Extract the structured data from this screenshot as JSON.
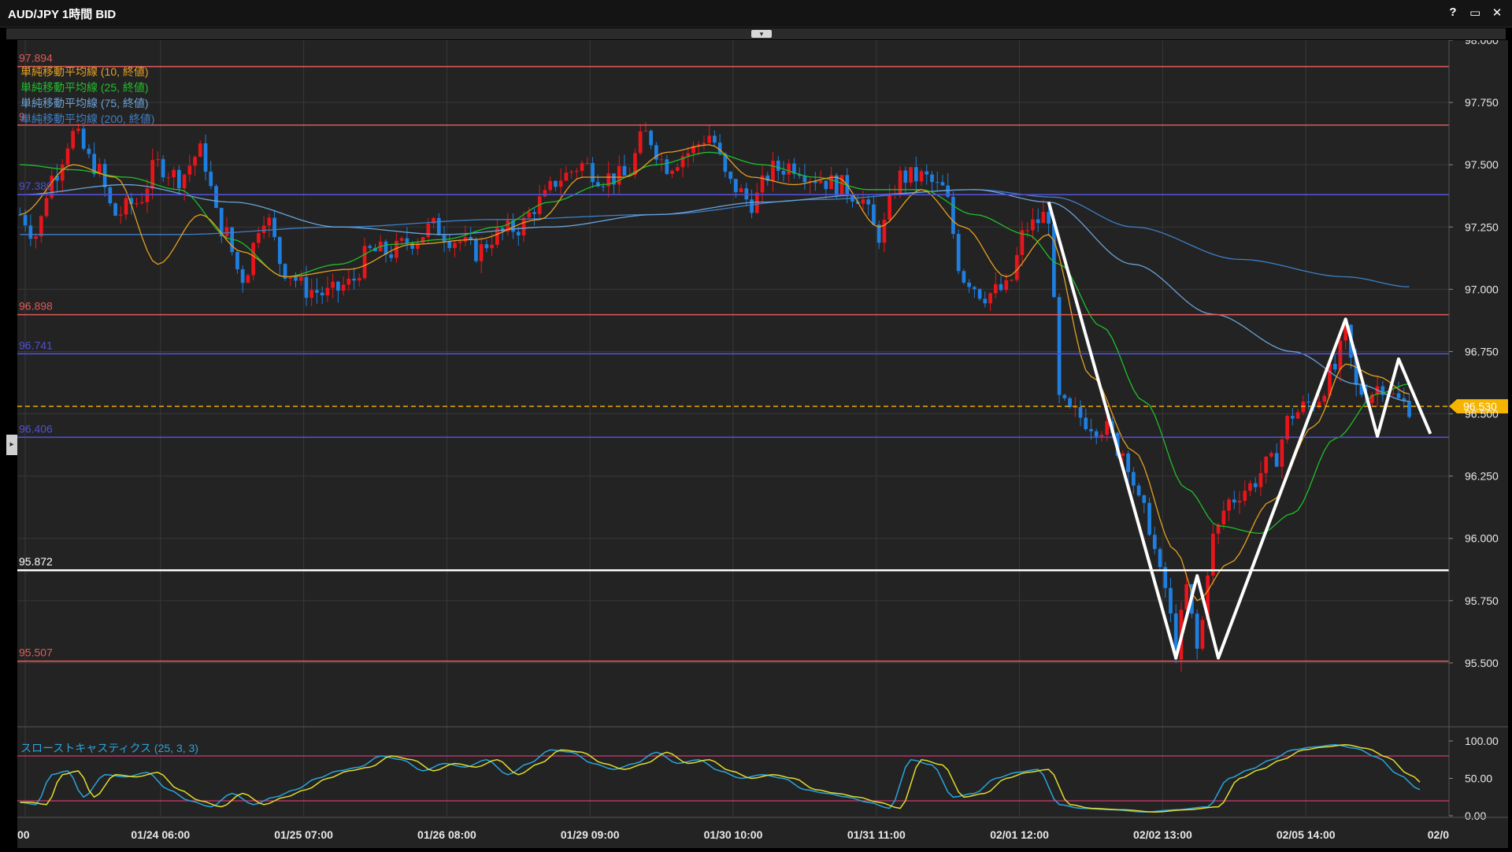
{
  "window": {
    "title": "AUD/JPY 1時間 BID",
    "buttons": [
      {
        "name": "help-button",
        "label": "?"
      },
      {
        "name": "maximize-button",
        "label": "▭"
      },
      {
        "name": "close-button",
        "label": "✕"
      }
    ]
  },
  "controls": {
    "collapse_icon": "▾",
    "side_handle_icon": "▸"
  },
  "colors": {
    "background": "#232323",
    "grid": "#383838",
    "up_candle": "#e8151b",
    "down_candle": "#1e7fe0",
    "sma10": "#e5a021",
    "sma25": "#1fbf2a",
    "sma75": "#6aa2d8",
    "sma200": "#3d7fc6",
    "resistance_line": "#e05a5a",
    "support_line_blue": "#5050d0",
    "neckline": "#ffffff",
    "current_price": "#f5b400",
    "stoch_k": "#2aa4dc",
    "stoch_d": "#e0dc2e",
    "stoch_levels": "#d03c6e"
  },
  "chart_data": [
    {
      "type": "candlestick",
      "instrument": "AUD/JPY",
      "timeframe": "1時間",
      "price_type": "BID",
      "y_axis": {
        "min": 95.25,
        "max": 98.0,
        "ticks": [
          "98.000",
          "97.750",
          "97.500",
          "97.250",
          "97.000",
          "96.750",
          "96.500",
          "96.250",
          "96.000",
          "95.750",
          "95.500"
        ]
      },
      "x_axis": {
        "ticks": [
          "00",
          "01/24 06:00",
          "01/25 07:00",
          "01/26 08:00",
          "01/29 09:00",
          "01/30 10:00",
          "01/31 11:00",
          "02/01 12:00",
          "02/02 13:00",
          "02/05 14:00",
          "02/0"
        ]
      },
      "current_price": {
        "value": 96.53,
        "label": "96.530"
      },
      "legend": [
        {
          "label": "単純移動平均線 (10, 終値)",
          "color_key": "sma10"
        },
        {
          "label": "単純移動平均線 (25, 終値)",
          "color_key": "sma25"
        },
        {
          "label": "単純移動平均線 (75, 終値)",
          "color_key": "sma75"
        },
        {
          "label": "単純移動平均線 (200, 終値)",
          "color_key": "sma200"
        }
      ],
      "horizontal_lines": [
        {
          "value": 97.894,
          "label": "97.894",
          "color_key": "resistance_line"
        },
        {
          "value": 97.659,
          "label": "9",
          "color_key": "resistance_line"
        },
        {
          "value": 97.38,
          "label": "97.380",
          "color_key": "support_line_blue"
        },
        {
          "value": 96.898,
          "label": "96.898",
          "color_key": "resistance_line"
        },
        {
          "value": 96.741,
          "label": "96.741",
          "color_key": "support_line_blue"
        },
        {
          "value": 96.406,
          "label": "96.406",
          "color_key": "support_line_blue"
        },
        {
          "value": 95.872,
          "label": "95.872",
          "color_key": "neckline"
        },
        {
          "value": 95.507,
          "label": "95.507",
          "color_key": "resistance_line"
        }
      ],
      "price_anchors": [
        [
          0,
          97.3
        ],
        [
          3,
          97.22
        ],
        [
          6,
          97.45
        ],
        [
          10,
          97.62
        ],
        [
          14,
          97.5
        ],
        [
          18,
          97.3
        ],
        [
          22,
          97.35
        ],
        [
          26,
          97.5
        ],
        [
          30,
          97.45
        ],
        [
          34,
          97.55
        ],
        [
          38,
          97.25
        ],
        [
          42,
          97.05
        ],
        [
          46,
          97.3
        ],
        [
          50,
          97.08
        ],
        [
          54,
          97.0
        ],
        [
          58,
          96.98
        ],
        [
          62,
          97.02
        ],
        [
          66,
          97.15
        ],
        [
          70,
          97.15
        ],
        [
          74,
          97.2
        ],
        [
          78,
          97.25
        ],
        [
          82,
          97.2
        ],
        [
          86,
          97.15
        ],
        [
          90,
          97.22
        ],
        [
          94,
          97.25
        ],
        [
          98,
          97.35
        ],
        [
          102,
          97.45
        ],
        [
          106,
          97.5
        ],
        [
          110,
          97.45
        ],
        [
          114,
          97.45
        ],
        [
          118,
          97.62
        ],
        [
          122,
          97.5
        ],
        [
          126,
          97.55
        ],
        [
          130,
          97.62
        ],
        [
          134,
          97.42
        ],
        [
          138,
          97.35
        ],
        [
          142,
          97.48
        ],
        [
          146,
          97.5
        ],
        [
          150,
          97.45
        ],
        [
          154,
          97.42
        ],
        [
          158,
          97.38
        ],
        [
          162,
          97.22
        ],
        [
          166,
          97.45
        ],
        [
          170,
          97.45
        ],
        [
          174,
          97.4
        ],
        [
          178,
          97.05
        ],
        [
          182,
          96.98
        ],
        [
          186,
          97.0
        ],
        [
          190,
          97.25
        ],
        [
          194,
          97.3
        ],
        [
          196,
          96.55
        ],
        [
          198,
          96.5
        ],
        [
          204,
          96.45
        ],
        [
          208,
          96.35
        ],
        [
          212,
          96.1
        ],
        [
          216,
          95.8
        ],
        [
          218,
          95.55
        ],
        [
          220,
          95.8
        ],
        [
          222,
          95.55
        ],
        [
          225,
          96.0
        ],
        [
          228,
          96.15
        ],
        [
          231,
          96.2
        ],
        [
          236,
          96.3
        ],
        [
          240,
          96.5
        ],
        [
          244,
          96.55
        ],
        [
          248,
          96.68
        ],
        [
          250,
          96.82
        ],
        [
          252,
          96.6
        ],
        [
          254,
          96.58
        ],
        [
          257,
          96.62
        ],
        [
          260,
          96.55
        ],
        [
          262,
          96.53
        ]
      ],
      "sma10": [
        [
          0,
          97.3
        ],
        [
          10,
          97.5
        ],
        [
          18,
          97.45
        ],
        [
          26,
          97.1
        ],
        [
          34,
          97.3
        ],
        [
          42,
          97.15
        ],
        [
          50,
          97.05
        ],
        [
          62,
          97.08
        ],
        [
          74,
          97.18
        ],
        [
          86,
          97.2
        ],
        [
          98,
          97.28
        ],
        [
          106,
          97.45
        ],
        [
          114,
          97.45
        ],
        [
          122,
          97.55
        ],
        [
          130,
          97.58
        ],
        [
          138,
          97.45
        ],
        [
          146,
          97.42
        ],
        [
          154,
          97.45
        ],
        [
          162,
          97.25
        ],
        [
          170,
          97.4
        ],
        [
          178,
          97.25
        ],
        [
          186,
          97.05
        ],
        [
          194,
          97.22
        ],
        [
          202,
          96.65
        ],
        [
          210,
          96.35
        ],
        [
          218,
          95.95
        ],
        [
          222,
          95.75
        ],
        [
          228,
          95.9
        ],
        [
          236,
          96.15
        ],
        [
          244,
          96.45
        ],
        [
          250,
          96.7
        ],
        [
          256,
          96.65
        ],
        [
          262,
          96.58
        ]
      ],
      "sma25": [
        [
          0,
          97.5
        ],
        [
          10,
          97.48
        ],
        [
          20,
          97.45
        ],
        [
          30,
          97.4
        ],
        [
          40,
          97.2
        ],
        [
          50,
          97.05
        ],
        [
          60,
          97.1
        ],
        [
          70,
          97.18
        ],
        [
          80,
          97.2
        ],
        [
          90,
          97.25
        ],
        [
          100,
          97.35
        ],
        [
          110,
          97.42
        ],
        [
          120,
          97.5
        ],
        [
          130,
          97.55
        ],
        [
          140,
          97.5
        ],
        [
          150,
          97.45
        ],
        [
          160,
          97.4
        ],
        [
          170,
          97.4
        ],
        [
          180,
          97.3
        ],
        [
          190,
          97.22
        ],
        [
          196,
          97.1
        ],
        [
          204,
          96.85
        ],
        [
          212,
          96.55
        ],
        [
          220,
          96.2
        ],
        [
          226,
          96.05
        ],
        [
          234,
          96.02
        ],
        [
          240,
          96.1
        ],
        [
          248,
          96.4
        ],
        [
          256,
          96.58
        ],
        [
          262,
          96.62
        ]
      ],
      "sma75": [
        [
          0,
          97.38
        ],
        [
          20,
          97.42
        ],
        [
          40,
          97.35
        ],
        [
          60,
          97.25
        ],
        [
          80,
          97.22
        ],
        [
          100,
          97.25
        ],
        [
          120,
          97.3
        ],
        [
          140,
          97.35
        ],
        [
          160,
          97.38
        ],
        [
          180,
          97.4
        ],
        [
          194,
          97.35
        ],
        [
          210,
          97.1
        ],
        [
          225,
          96.9
        ],
        [
          240,
          96.75
        ],
        [
          252,
          96.62
        ],
        [
          262,
          96.55
        ]
      ],
      "sma200": [
        [
          0,
          97.22
        ],
        [
          30,
          97.22
        ],
        [
          60,
          97.25
        ],
        [
          90,
          97.28
        ],
        [
          120,
          97.3
        ],
        [
          150,
          97.36
        ],
        [
          180,
          97.4
        ],
        [
          195,
          97.37
        ],
        [
          210,
          97.25
        ],
        [
          230,
          97.12
        ],
        [
          250,
          97.05
        ],
        [
          262,
          97.01
        ]
      ],
      "pattern_lines": [
        [
          [
            194,
            97.35
          ],
          [
            218,
            95.52
          ],
          [
            222,
            95.85
          ],
          [
            226,
            95.52
          ],
          [
            250,
            96.88
          ],
          [
            256,
            96.41
          ],
          [
            260,
            96.72
          ],
          [
            266,
            96.42
          ]
        ]
      ]
    },
    {
      "type": "line",
      "title": "スローストキャスティクス (25, 3, 3)",
      "y_axis": {
        "min": 0,
        "max": 100,
        "ticks": [
          "100.00",
          "50.00",
          "0.00"
        ]
      },
      "levels": [
        20,
        80
      ],
      "k_anchors": [
        [
          0,
          18
        ],
        [
          3,
          15
        ],
        [
          6,
          55
        ],
        [
          9,
          60
        ],
        [
          12,
          25
        ],
        [
          16,
          55
        ],
        [
          20,
          52
        ],
        [
          24,
          58
        ],
        [
          28,
          35
        ],
        [
          32,
          20
        ],
        [
          36,
          12
        ],
        [
          40,
          30
        ],
        [
          44,
          15
        ],
        [
          48,
          25
        ],
        [
          52,
          35
        ],
        [
          56,
          50
        ],
        [
          60,
          60
        ],
        [
          64,
          65
        ],
        [
          68,
          80
        ],
        [
          72,
          75
        ],
        [
          76,
          60
        ],
        [
          80,
          70
        ],
        [
          84,
          65
        ],
        [
          88,
          75
        ],
        [
          92,
          55
        ],
        [
          96,
          70
        ],
        [
          100,
          88
        ],
        [
          104,
          85
        ],
        [
          108,
          70
        ],
        [
          112,
          62
        ],
        [
          116,
          70
        ],
        [
          120,
          85
        ],
        [
          124,
          70
        ],
        [
          128,
          75
        ],
        [
          132,
          60
        ],
        [
          136,
          50
        ],
        [
          140,
          55
        ],
        [
          144,
          50
        ],
        [
          148,
          35
        ],
        [
          152,
          30
        ],
        [
          156,
          25
        ],
        [
          160,
          18
        ],
        [
          164,
          10
        ],
        [
          168,
          75
        ],
        [
          172,
          68
        ],
        [
          176,
          25
        ],
        [
          180,
          30
        ],
        [
          184,
          50
        ],
        [
          188,
          58
        ],
        [
          192,
          62
        ],
        [
          196,
          15
        ],
        [
          200,
          10
        ],
        [
          206,
          8
        ],
        [
          212,
          5
        ],
        [
          218,
          8
        ],
        [
          224,
          12
        ],
        [
          228,
          50
        ],
        [
          232,
          62
        ],
        [
          236,
          75
        ],
        [
          240,
          88
        ],
        [
          244,
          92
        ],
        [
          248,
          95
        ],
        [
          252,
          90
        ],
        [
          256,
          78
        ],
        [
          260,
          55
        ],
        [
          264,
          35
        ]
      ]
    }
  ]
}
